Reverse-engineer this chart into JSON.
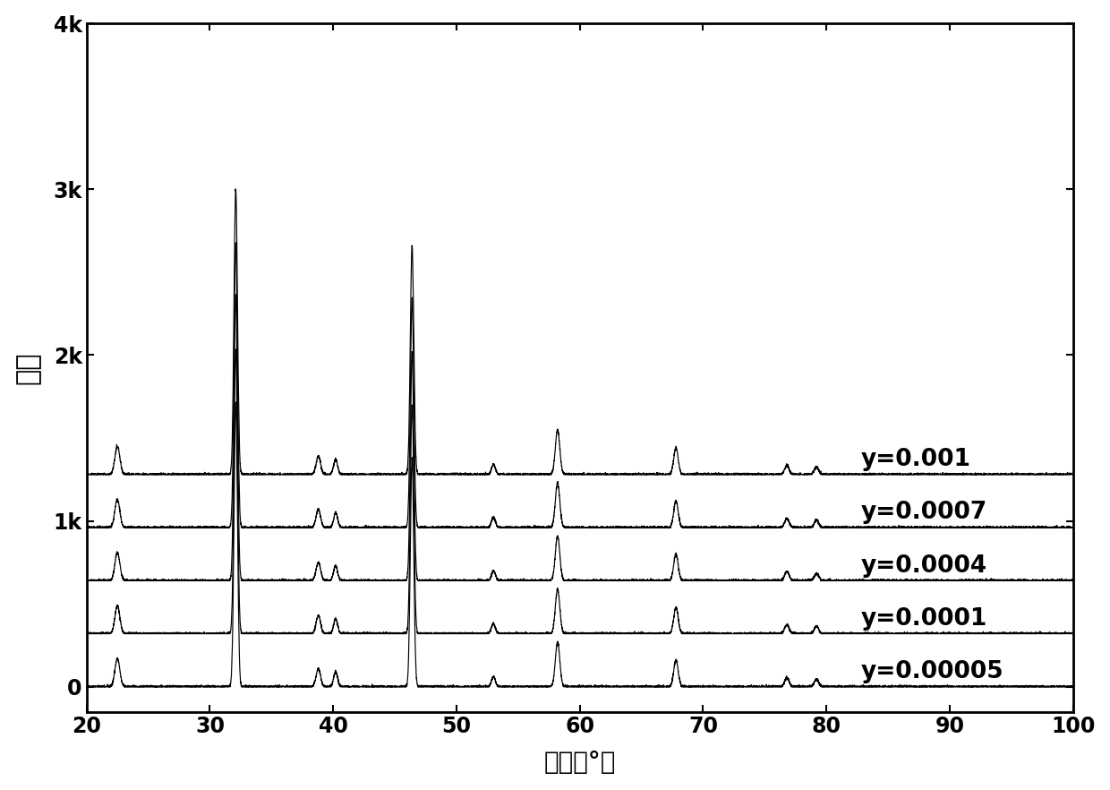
{
  "series_labels": [
    "y=0.00005",
    "y=0.0001",
    "y=0.0004",
    "y=0.0007",
    "y=0.001"
  ],
  "offsets": [
    0,
    320,
    640,
    960,
    1280
  ],
  "x_min": 20,
  "x_max": 100,
  "y_min": -150,
  "y_max": 4000,
  "yticks": [
    0,
    1000,
    2000,
    3000,
    4000
  ],
  "ytick_labels": [
    "0",
    "1k",
    "2k",
    "3k",
    "4k"
  ],
  "xticks": [
    20,
    30,
    40,
    50,
    60,
    70,
    80,
    90,
    100
  ],
  "xlabel": "角度（°）",
  "ylabel": "强度",
  "peak_positions": [
    22.5,
    32.1,
    38.8,
    40.2,
    46.4,
    53.0,
    58.2,
    67.8,
    76.8,
    79.2
  ],
  "peak_heights": [
    170,
    1720,
    110,
    90,
    1380,
    60,
    270,
    160,
    55,
    45
  ],
  "peak_widths": [
    0.2,
    0.14,
    0.18,
    0.16,
    0.14,
    0.16,
    0.18,
    0.18,
    0.18,
    0.18
  ],
  "noise_level": 4,
  "background_color": "#ffffff",
  "line_color": "#000000",
  "label_fontsize": 20,
  "tick_fontsize": 17,
  "legend_fontsize": 19,
  "ylabel_fontsize": 22
}
